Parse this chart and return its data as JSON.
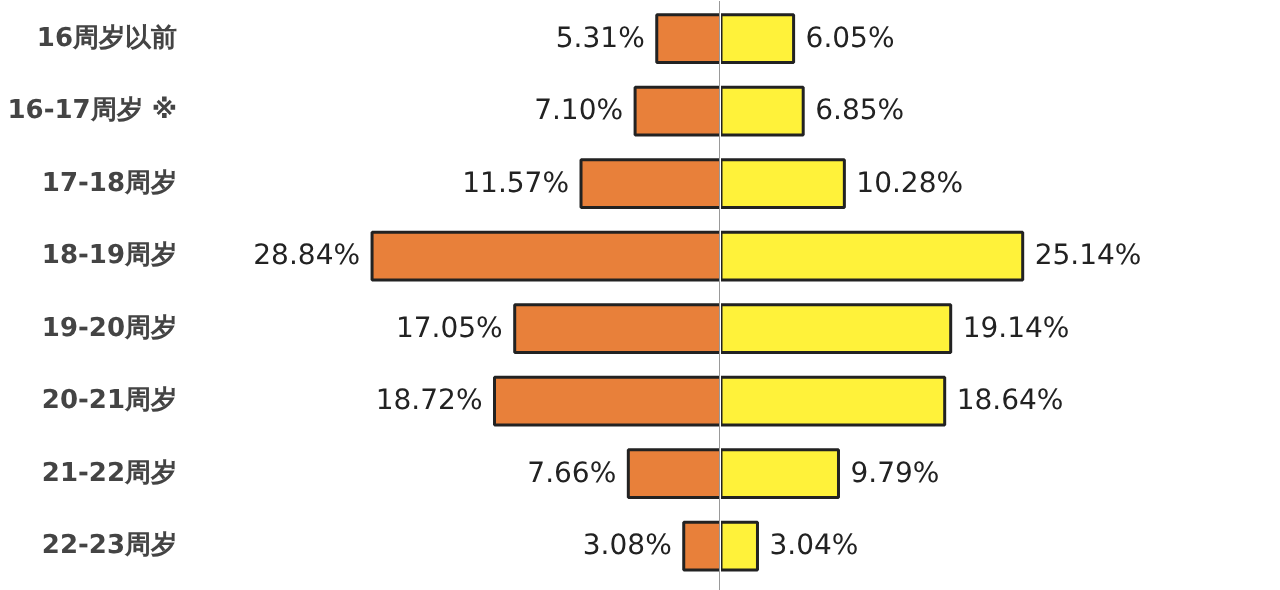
{
  "chart_data": [
    {
      "type": "bar",
      "orientation": "horizontal",
      "categories": [
        "16周岁以前",
        "16-17周岁 ※",
        "17-18周岁",
        "18-19周岁",
        "19-20周岁",
        "20-21周岁",
        "21-22周岁",
        "22-23周岁"
      ],
      "series": [
        {
          "color": "#e8803a",
          "values": [
            5.31,
            7.1,
            11.57,
            28.84,
            17.05,
            18.72,
            7.66,
            3.08
          ],
          "value_labels": [
            "5.31%",
            "7.10%",
            "11.57%",
            "28.84%",
            "17.05%",
            "18.72%",
            "7.66%",
            "3.08%"
          ]
        }
      ],
      "ref_lines": [
        {
          "axis": "x",
          "value": 0,
          "color": "#999999"
        }
      ],
      "tick_labels": "y"
    },
    {
      "type": "bar",
      "orientation": "horizontal",
      "categories": [
        null,
        null,
        null,
        null,
        null,
        null,
        null,
        null
      ],
      "series": [
        {
          "color": "#fff23a",
          "values": [
            6.05,
            6.85,
            10.28,
            25.14,
            19.14,
            18.64,
            9.79,
            3.04
          ],
          "value_labels": [
            "6.05%",
            "6.85%",
            "10.28%",
            "25.14%",
            "19.14%",
            "18.64%",
            "9.79%",
            "3.04%"
          ]
        }
      ],
      "tick_labels": false
    }
  ]
}
